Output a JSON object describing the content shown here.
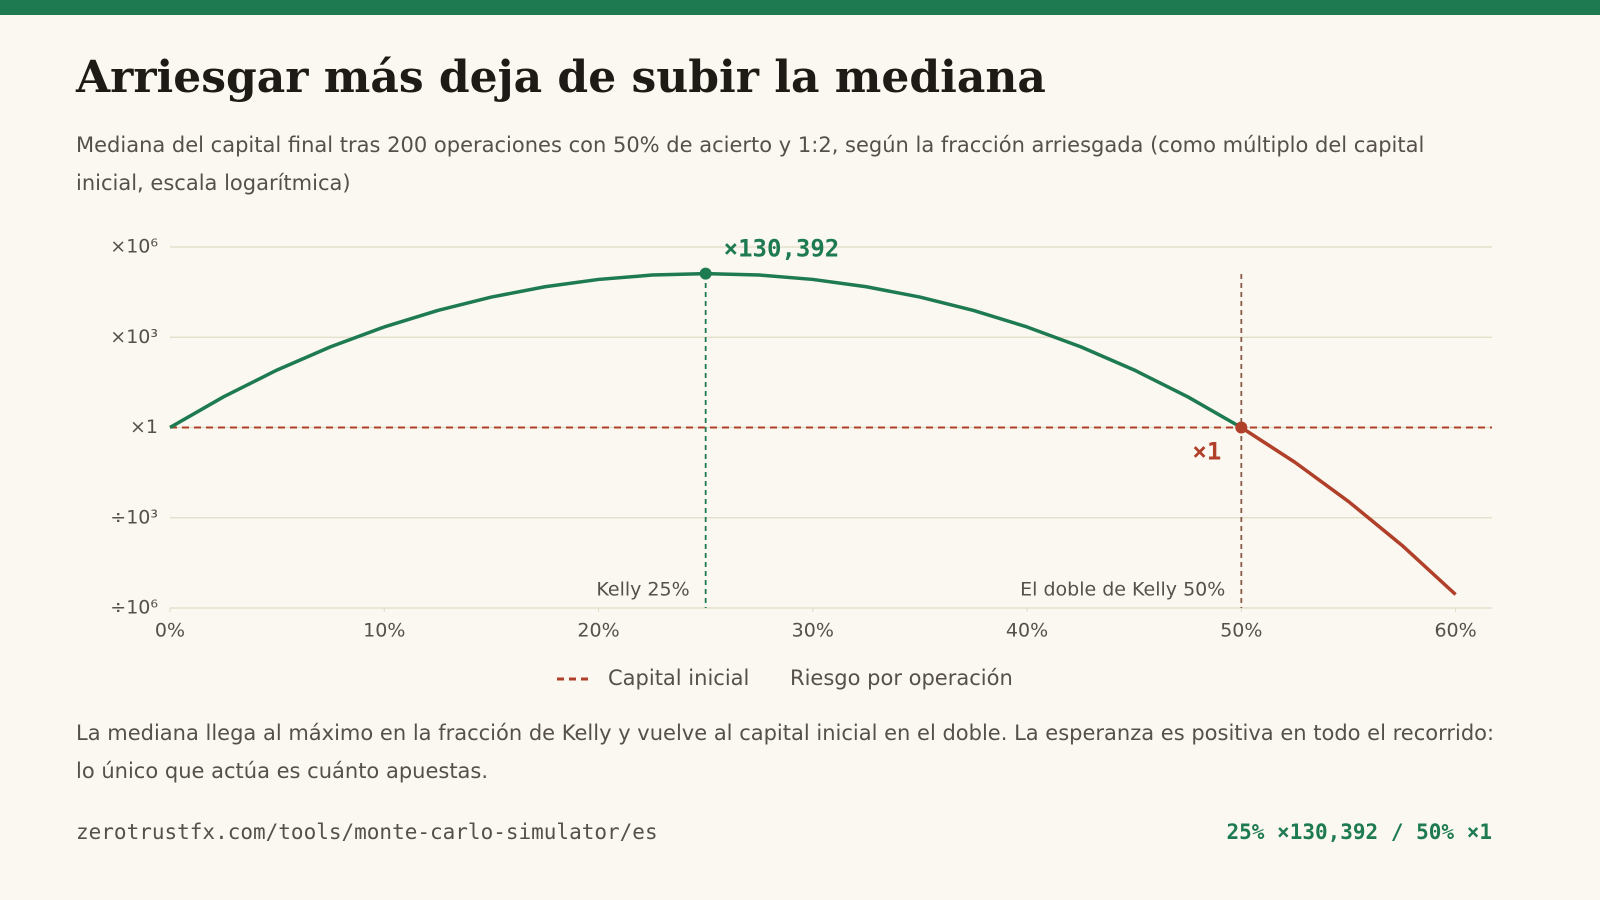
{
  "chart_data": {
    "type": "line",
    "title": "Arriesgar más deja de subir la mediana",
    "subtitle": "Mediana del capital final tras 200 operaciones con 50% de acierto y 1:2, según la fracción arriesgada (como múltiplo del capital inicial, escala logarítmica)",
    "x_label": "Riesgo por operación",
    "x": [
      0,
      2.5,
      5,
      7.5,
      10,
      12.5,
      15,
      17.5,
      20,
      22.5,
      25,
      27.5,
      30,
      32.5,
      35,
      37.5,
      40,
      42.5,
      45,
      47.5,
      50,
      52.5,
      55,
      57.5,
      60
    ],
    "series": [
      {
        "color": "#1e7a50",
        "values": [
          1,
          10.46,
          81.6,
          483,
          2199,
          7793,
          21690,
          47720,
          83520,
          116800,
          130392,
          116800,
          83520,
          47720,
          21690,
          7793,
          2199,
          483,
          81.6,
          10.46,
          1,
          null,
          null,
          null,
          null
        ]
      },
      {
        "color": "#b0402a",
        "values": [
          null,
          null,
          null,
          null,
          null,
          null,
          null,
          null,
          null,
          null,
          null,
          null,
          null,
          null,
          null,
          null,
          null,
          null,
          null,
          null,
          1,
          0.07,
          0.00349,
          0.000121,
          2.81e-06
        ]
      }
    ],
    "xlim": [
      0,
      61.7
    ],
    "xticks": [
      {
        "value": 0,
        "label": "0%"
      },
      {
        "value": 10,
        "label": "10%"
      },
      {
        "value": 20,
        "label": "20%"
      },
      {
        "value": 30,
        "label": "30%"
      },
      {
        "value": 40,
        "label": "40%"
      },
      {
        "value": 50,
        "label": "50%"
      },
      {
        "value": 60,
        "label": "60%"
      }
    ],
    "ylim": [
      1e-06,
      1000000
    ],
    "log_y": true,
    "yticks": [
      {
        "value": 1e-06,
        "label": "÷10⁶"
      },
      {
        "value": 0.001,
        "label": "÷10³"
      },
      {
        "value": 1,
        "label": "×1"
      },
      {
        "value": 1000,
        "label": "×10³"
      },
      {
        "value": 1000000,
        "label": "×10⁶"
      }
    ],
    "grid": true,
    "reference_line": {
      "value": 1,
      "label": "Capital inicial",
      "color": "#b0402a"
    },
    "vlines": [
      {
        "x": 25,
        "label": "Kelly 25%",
        "color": "#1e7a50"
      },
      {
        "x": 50,
        "label": "El doble de Kelly 50%",
        "color": "#8a5a48"
      }
    ],
    "annotations": [
      {
        "x": 25,
        "y": 130392,
        "text": "×130,392",
        "color": "#1e7a50"
      },
      {
        "x": 50,
        "y": 1,
        "text": "×1",
        "color": "#b0402a"
      }
    ],
    "note": "La mediana llega al máximo en la fracción de Kelly y vuelve al capital inicial en el doble. La esperanza es positiva en todo el recorrido: lo único que actúa es cuánto apuestas.",
    "footer_left": "zerotrustfx.com/tools/monte-carlo-simulator/es",
    "footer_right": "25% ×130,392 / 50% ×1"
  }
}
